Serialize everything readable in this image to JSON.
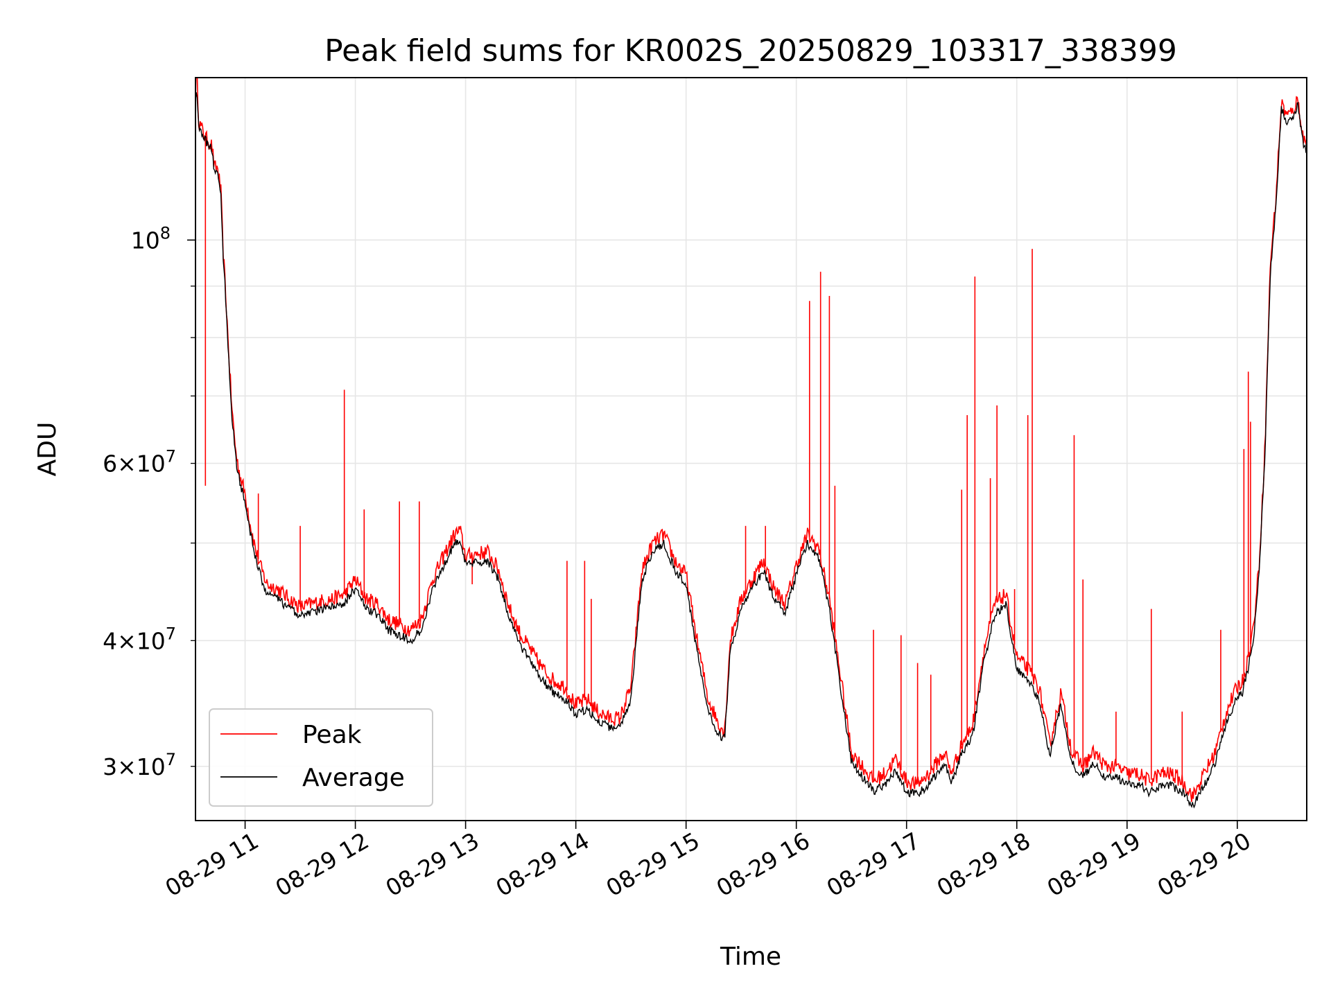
{
  "chart_data": {
    "type": "line",
    "title": "Peak field sums for KR002S_20250829_103317_338399",
    "xlabel": "Time",
    "ylabel": "ADU",
    "x_range_hours": [
      10.55,
      20.63
    ],
    "ylim": [
      26500000,
      145000000
    ],
    "yscale": "log",
    "grid": true,
    "legend": {
      "placement": "lower-left",
      "entries": [
        "Peak",
        "Average"
      ]
    },
    "x_ticks": [
      {
        "value": 11,
        "label": "08-29 11"
      },
      {
        "value": 12,
        "label": "08-29 12"
      },
      {
        "value": 13,
        "label": "08-29 13"
      },
      {
        "value": 14,
        "label": "08-29 14"
      },
      {
        "value": 15,
        "label": "08-29 15"
      },
      {
        "value": 16,
        "label": "08-29 16"
      },
      {
        "value": 17,
        "label": "08-29 17"
      },
      {
        "value": 18,
        "label": "08-29 18"
      },
      {
        "value": 19,
        "label": "08-29 19"
      },
      {
        "value": 20,
        "label": "08-29 20"
      }
    ],
    "y_ticks_major": [
      {
        "value": 100000000,
        "base": "10",
        "exp": "8"
      }
    ],
    "y_ticks_minor": [
      {
        "value": 30000000,
        "mant": "3",
        "exp": "7"
      },
      {
        "value": 40000000,
        "mant": "4",
        "exp": "7"
      },
      {
        "value": 60000000,
        "mant": "6",
        "exp": "7"
      }
    ],
    "y_ticks_minor_unlabeled": [
      50000000,
      70000000,
      80000000,
      90000000
    ],
    "series": [
      {
        "name": "Peak",
        "color": "#ff0000",
        "x_hours": [
          10.55,
          10.56,
          10.58,
          10.62,
          10.65,
          10.7,
          10.72,
          10.75,
          10.78,
          10.8,
          10.82,
          10.85,
          10.88,
          10.92,
          10.96,
          11.0,
          11.05,
          11.1,
          11.15,
          11.2,
          11.3,
          11.4,
          11.5,
          11.6,
          11.7,
          11.8,
          11.9,
          12.0,
          12.1,
          12.2,
          12.3,
          12.4,
          12.5,
          12.6,
          12.7,
          12.8,
          12.9,
          12.95,
          13.0,
          13.1,
          13.2,
          13.3,
          13.4,
          13.5,
          13.6,
          13.7,
          13.8,
          13.9,
          14.0,
          14.1,
          14.2,
          14.3,
          14.4,
          14.5,
          14.6,
          14.7,
          14.8,
          14.9,
          15.0,
          15.1,
          15.2,
          15.3,
          15.35,
          15.4,
          15.5,
          15.6,
          15.7,
          15.8,
          15.9,
          16.0,
          16.1,
          16.2,
          16.3,
          16.4,
          16.5,
          16.6,
          16.7,
          16.8,
          16.9,
          17.0,
          17.1,
          17.2,
          17.3,
          17.35,
          17.4,
          17.5,
          17.6,
          17.7,
          17.8,
          17.9,
          18.0,
          18.1,
          18.2,
          18.3,
          18.4,
          18.5,
          18.6,
          18.7,
          18.8,
          18.9,
          19.0,
          19.1,
          19.2,
          19.3,
          19.4,
          19.5,
          19.6,
          19.7,
          19.8,
          19.9,
          20.0,
          20.05,
          20.1,
          20.15,
          20.2,
          20.25,
          20.3,
          20.35,
          20.4,
          20.45,
          20.5,
          20.55,
          20.6,
          20.63
        ],
        "y": [
          140000000,
          150000000,
          131000000,
          128000000,
          126000000,
          124000000,
          118000000,
          118000000,
          112000000,
          98000000,
          90000000,
          78000000,
          68000000,
          61000000,
          58000000,
          56000000,
          52000000,
          49000000,
          47000000,
          45500000,
          45000000,
          44000000,
          43200000,
          43500000,
          43800000,
          44000000,
          44500000,
          46000000,
          44000000,
          43500000,
          42000000,
          41500000,
          41000000,
          42000000,
          46000000,
          48500000,
          51000000,
          51500000,
          48500000,
          48800000,
          49000000,
          47000000,
          43000000,
          40500000,
          39000000,
          37500000,
          36500000,
          36000000,
          34500000,
          35000000,
          34000000,
          33500000,
          33500000,
          36000000,
          47000000,
          50000000,
          51000000,
          48000000,
          46500000,
          40000000,
          35000000,
          33000000,
          32500000,
          40000000,
          44000000,
          46000000,
          48000000,
          45000000,
          43500000,
          47500000,
          51000000,
          49500000,
          44000000,
          37000000,
          31000000,
          30000000,
          29000000,
          29500000,
          30500000,
          29000000,
          28800000,
          29500000,
          30500000,
          31000000,
          29500000,
          31500000,
          33000000,
          39000000,
          43500000,
          44500000,
          38500000,
          37500000,
          36000000,
          31500000,
          35500000,
          31000000,
          30000000,
          31000000,
          30000000,
          30000000,
          29500000,
          29500000,
          29000000,
          29500000,
          29500000,
          29000000,
          28000000,
          29500000,
          31000000,
          34000000,
          36000000,
          36500000,
          38500000,
          41500000,
          48000000,
          62000000,
          95000000,
          110000000,
          137000000,
          133000000,
          134000000,
          138000000,
          126000000,
          125000000
        ],
        "spikes": [
          [
            10.64,
            57000000
          ],
          [
            11.12,
            56000000
          ],
          [
            11.5,
            52000000
          ],
          [
            11.9,
            71000000
          ],
          [
            12.08,
            54000000
          ],
          [
            12.4,
            55000000
          ],
          [
            12.58,
            55000000
          ],
          [
            13.06,
            45500000
          ],
          [
            13.92,
            48000000
          ],
          [
            14.08,
            48000000
          ],
          [
            14.14,
            44000000
          ],
          [
            15.54,
            52000000
          ],
          [
            15.72,
            52000000
          ],
          [
            16.12,
            87000000
          ],
          [
            16.22,
            93000000
          ],
          [
            16.3,
            88000000
          ],
          [
            16.35,
            57000000
          ],
          [
            16.7,
            41000000
          ],
          [
            16.95,
            40500000
          ],
          [
            17.1,
            38000000
          ],
          [
            17.22,
            37000000
          ],
          [
            17.5,
            56500000
          ],
          [
            17.55,
            67000000
          ],
          [
            17.62,
            92000000
          ],
          [
            17.76,
            58000000
          ],
          [
            17.82,
            68500000
          ],
          [
            17.98,
            45000000
          ],
          [
            18.1,
            67000000
          ],
          [
            18.14,
            98000000
          ],
          [
            18.52,
            64000000
          ],
          [
            18.6,
            46000000
          ],
          [
            18.9,
            34000000
          ],
          [
            19.22,
            43000000
          ],
          [
            19.5,
            34000000
          ],
          [
            19.85,
            41000000
          ],
          [
            20.06,
            62000000
          ],
          [
            20.1,
            74000000
          ],
          [
            20.12,
            66000000
          ]
        ]
      },
      {
        "name": "Average",
        "color": "#000000",
        "x_hours": [
          10.55,
          10.56,
          10.58,
          10.62,
          10.65,
          10.7,
          10.72,
          10.75,
          10.78,
          10.8,
          10.82,
          10.85,
          10.88,
          10.92,
          10.96,
          11.0,
          11.05,
          11.1,
          11.15,
          11.2,
          11.3,
          11.4,
          11.5,
          11.6,
          11.7,
          11.8,
          11.9,
          12.0,
          12.1,
          12.2,
          12.3,
          12.4,
          12.5,
          12.6,
          12.7,
          12.8,
          12.9,
          12.95,
          13.0,
          13.1,
          13.2,
          13.3,
          13.4,
          13.5,
          13.6,
          13.7,
          13.8,
          13.9,
          14.0,
          14.1,
          14.2,
          14.3,
          14.4,
          14.5,
          14.6,
          14.7,
          14.8,
          14.9,
          15.0,
          15.1,
          15.2,
          15.3,
          15.35,
          15.4,
          15.5,
          15.6,
          15.7,
          15.8,
          15.9,
          16.0,
          16.1,
          16.2,
          16.3,
          16.4,
          16.5,
          16.6,
          16.7,
          16.8,
          16.9,
          17.0,
          17.1,
          17.2,
          17.3,
          17.35,
          17.4,
          17.5,
          17.6,
          17.7,
          17.8,
          17.9,
          18.0,
          18.1,
          18.2,
          18.3,
          18.4,
          18.5,
          18.6,
          18.7,
          18.8,
          18.9,
          19.0,
          19.1,
          19.2,
          19.3,
          19.4,
          19.5,
          19.6,
          19.7,
          19.8,
          19.9,
          20.0,
          20.05,
          20.1,
          20.15,
          20.2,
          20.25,
          20.3,
          20.35,
          20.4,
          20.45,
          20.5,
          20.55,
          20.6,
          20.63
        ],
        "y": [
          138000000,
          142000000,
          130000000,
          127000000,
          125000000,
          123000000,
          117000000,
          117000000,
          111000000,
          97000000,
          89000000,
          77000000,
          67000000,
          60000000,
          57000000,
          55000000,
          51000000,
          48000000,
          46000000,
          44500000,
          44000000,
          43000000,
          42400000,
          42700000,
          43000000,
          43200000,
          43600000,
          45000000,
          43000000,
          42500000,
          41000000,
          40500000,
          40000000,
          41000000,
          45000000,
          47500000,
          50000000,
          50500000,
          47500000,
          47800000,
          48000000,
          46000000,
          42000000,
          39500000,
          38000000,
          36500000,
          35500000,
          35000000,
          33800000,
          34200000,
          33300000,
          32800000,
          32800000,
          35000000,
          46000000,
          49000000,
          50000000,
          47000000,
          45500000,
          39000000,
          34000000,
          32200000,
          32000000,
          39000000,
          43000000,
          45000000,
          47000000,
          44000000,
          42700000,
          46500000,
          50000000,
          48500000,
          43000000,
          36000000,
          30300000,
          29300000,
          28300000,
          28700000,
          29700000,
          28300000,
          28100000,
          28800000,
          29700000,
          30300000,
          28800000,
          30800000,
          32200000,
          38000000,
          42500000,
          43500000,
          37500000,
          36600000,
          35000000,
          30800000,
          34600000,
          30200000,
          29300000,
          30200000,
          29300000,
          29300000,
          28800000,
          28800000,
          28300000,
          28700000,
          28700000,
          28300000,
          27400000,
          28700000,
          30200000,
          33100000,
          35100000,
          35600000,
          37600000,
          40500000,
          47000000,
          61000000,
          93000000,
          108000000,
          135000000,
          131000000,
          132000000,
          136000000,
          124000000,
          123000000
        ]
      }
    ]
  }
}
